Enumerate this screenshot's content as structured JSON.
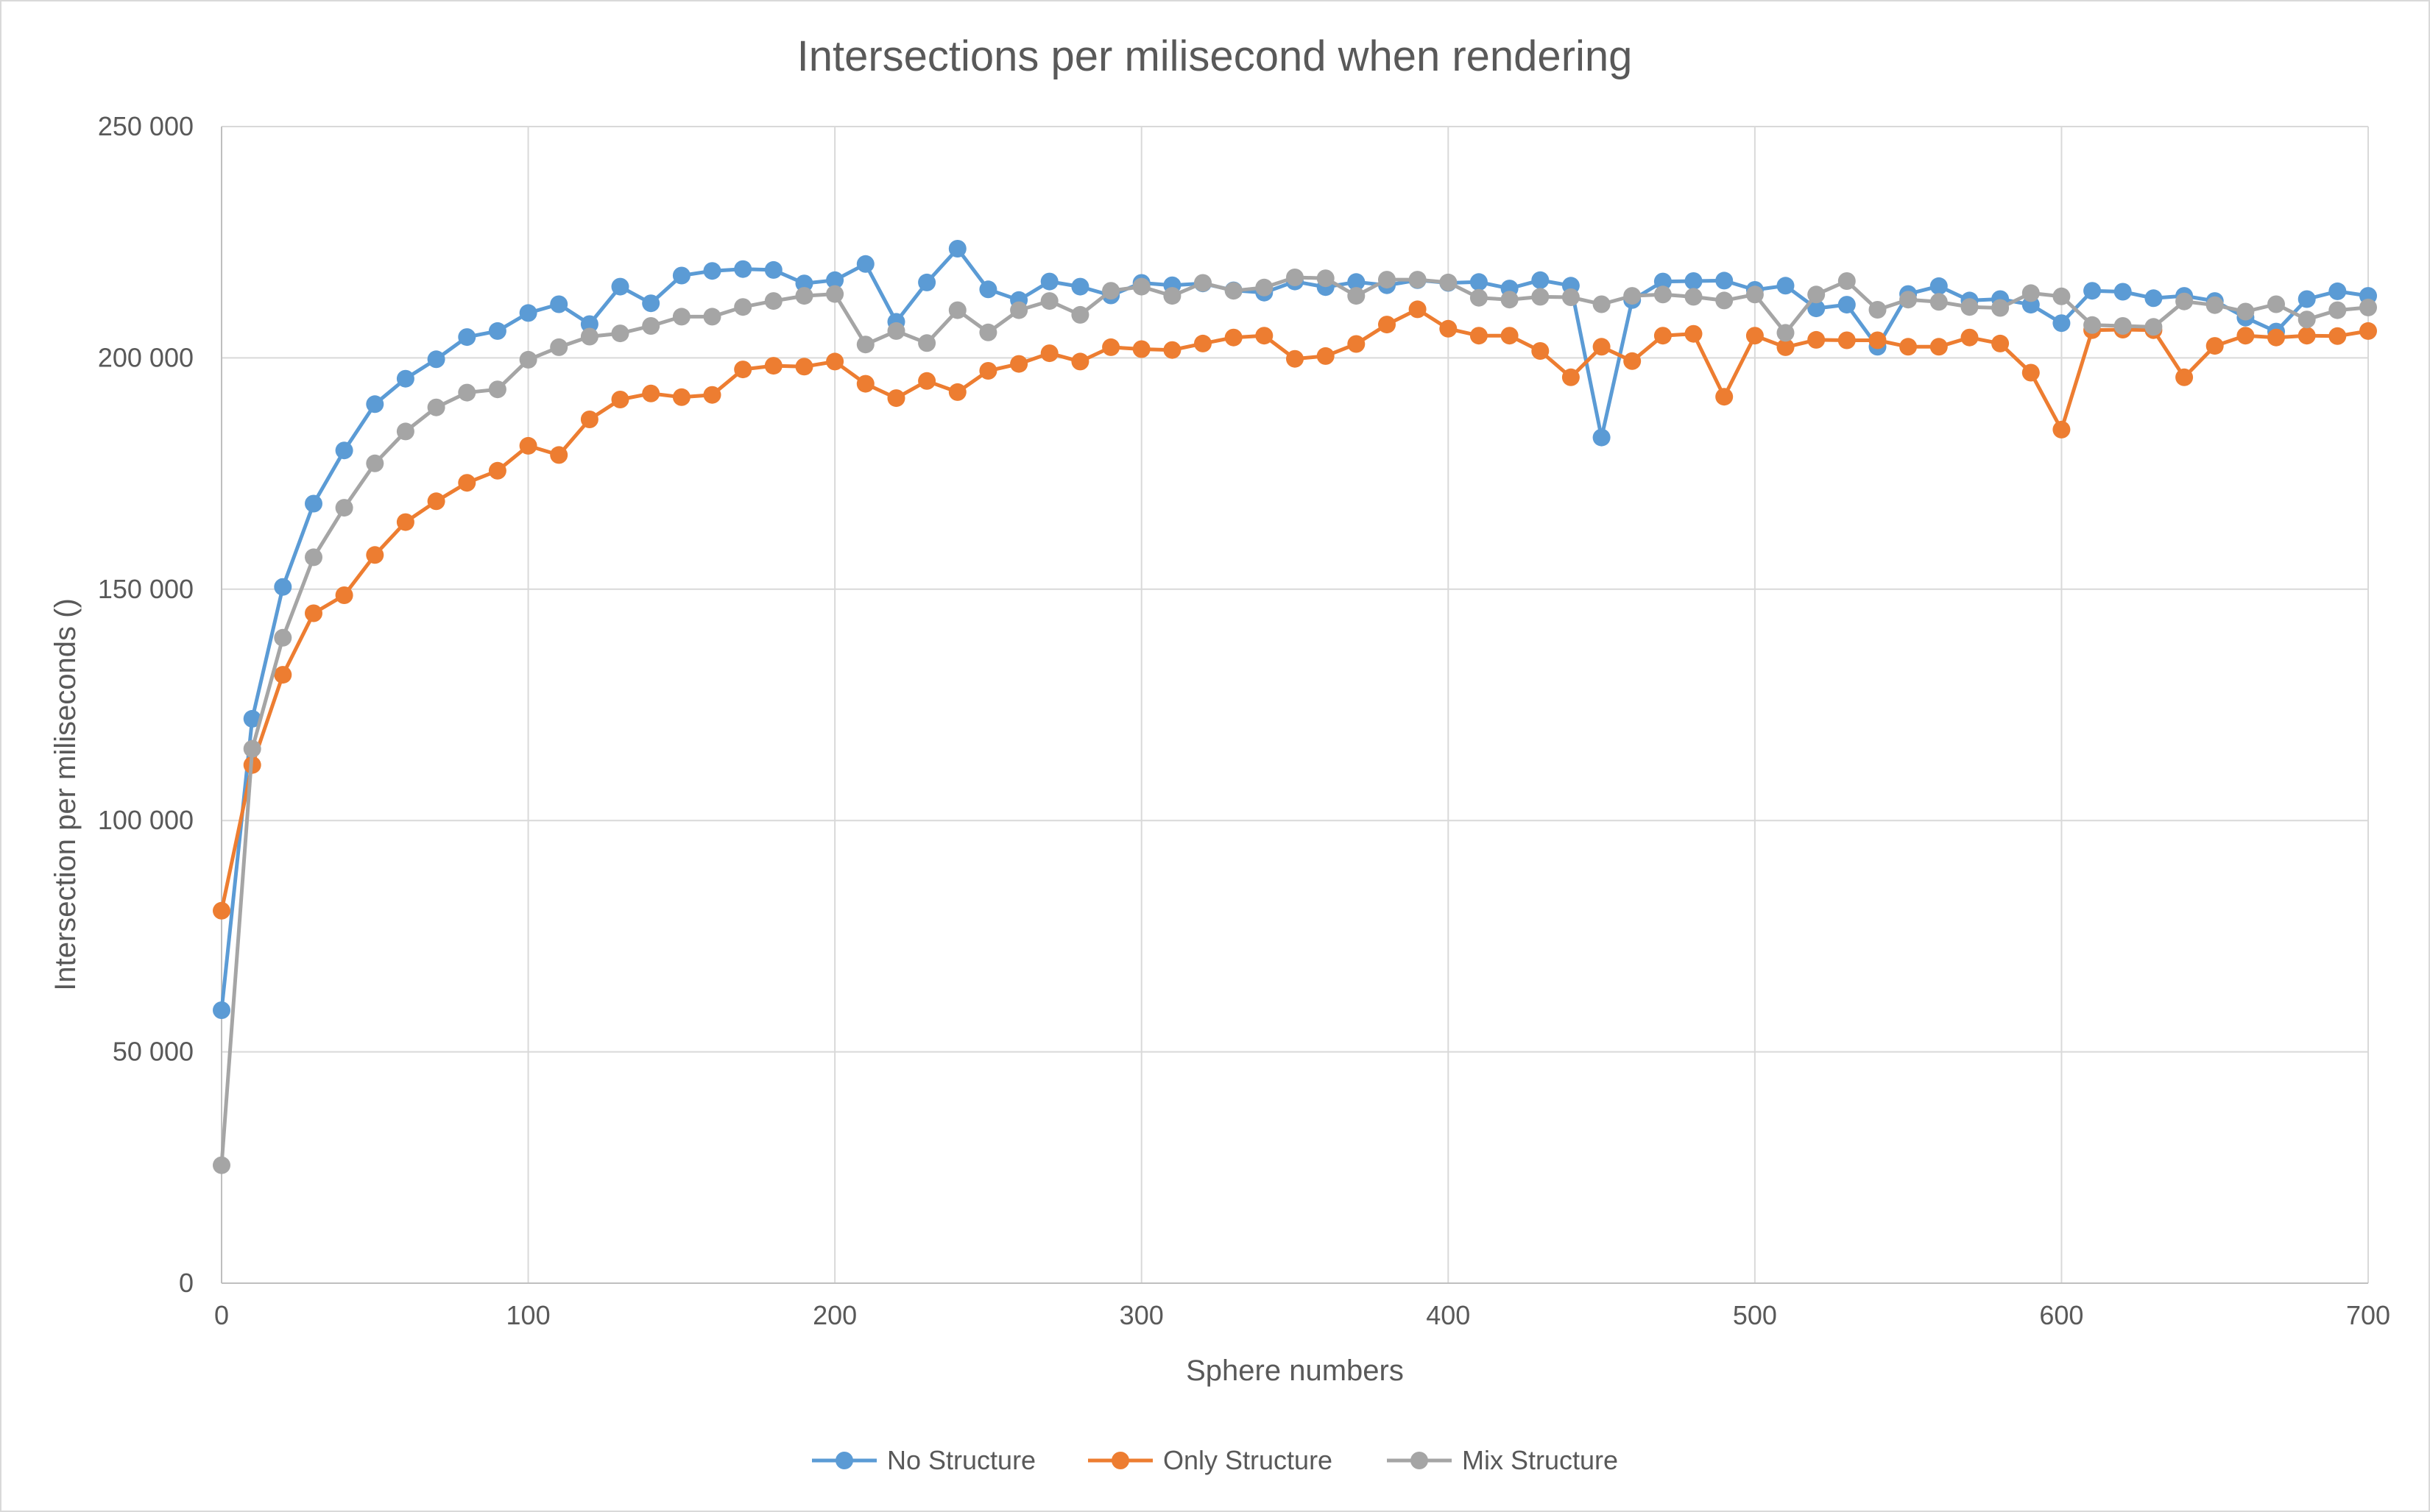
{
  "chart_data": {
    "type": "line",
    "title": "Intersections per milisecond when rendering",
    "xlabel": "Sphere numbers",
    "ylabel": "Intersection per miliseconds ()",
    "xlim": [
      0,
      700
    ],
    "ylim": [
      0,
      250000
    ],
    "x_ticks": [
      0,
      100,
      200,
      300,
      400,
      500,
      600,
      700
    ],
    "x_tick_labels": [
      "0",
      "100",
      "200",
      "300",
      "400",
      "500",
      "600",
      "700"
    ],
    "y_ticks": [
      0,
      50000,
      100000,
      150000,
      200000,
      250000
    ],
    "y_tick_labels": [
      "0",
      "50 000",
      "100 000",
      "150 000",
      "200 000",
      "250 000"
    ],
    "grid": true,
    "legend_position": "bottom",
    "x": [
      0,
      10,
      20,
      30,
      40,
      50,
      60,
      70,
      80,
      90,
      100,
      110,
      120,
      130,
      140,
      150,
      160,
      170,
      180,
      190,
      200,
      210,
      220,
      230,
      240,
      250,
      260,
      270,
      280,
      290,
      300,
      310,
      320,
      330,
      340,
      350,
      360,
      370,
      380,
      390,
      400,
      410,
      420,
      430,
      440,
      450,
      460,
      470,
      480,
      490,
      500,
      510,
      520,
      530,
      540,
      550,
      560,
      570,
      580,
      590,
      600,
      610,
      620,
      630,
      640,
      650,
      660,
      670,
      680,
      690,
      700
    ],
    "series": [
      {
        "name": "No Structure",
        "color": "#5b9bd5",
        "values": [
          59000,
          122000,
          150500,
          168500,
          180000,
          190000,
          195500,
          199700,
          204500,
          205800,
          209700,
          211600,
          207300,
          215400,
          211800,
          217800,
          218800,
          219200,
          219000,
          216100,
          216800,
          220300,
          207800,
          216300,
          223600,
          214800,
          212500,
          216500,
          215400,
          213500,
          216200,
          215700,
          216100,
          214600,
          214100,
          216500,
          215300,
          216400,
          215700,
          216800,
          216200,
          216400,
          215000,
          216800,
          215600,
          182800,
          212500,
          216500,
          216600,
          216700,
          214700,
          215600,
          210700,
          211500,
          202400,
          213800,
          215500,
          212400,
          212700,
          211500,
          207500,
          214500,
          214300,
          212900,
          213400,
          212300,
          208700,
          205700,
          212700,
          214400,
          213400
        ]
      },
      {
        "name": "Only Structure",
        "color": "#ed7d31",
        "values": [
          80500,
          112000,
          131500,
          144800,
          148700,
          157400,
          164500,
          169000,
          173000,
          175600,
          181000,
          179000,
          186700,
          191000,
          192300,
          191500,
          192000,
          197500,
          198300,
          198100,
          199200,
          194400,
          191300,
          195000,
          192600,
          197200,
          198700,
          201000,
          199200,
          202300,
          201900,
          201700,
          203100,
          204400,
          204800,
          199800,
          200400,
          203000,
          207200,
          210500,
          206300,
          204800,
          204800,
          201500,
          195800,
          202400,
          199300,
          204800,
          205200,
          191600,
          204800,
          202300,
          203900,
          203800,
          203800,
          202400,
          202400,
          204400,
          203100,
          196800,
          184500,
          206000,
          206100,
          206000,
          195800,
          202600,
          204800,
          204400,
          204800,
          204700,
          205800
        ]
      },
      {
        "name": "Mix Structure",
        "color": "#a5a5a5",
        "values": [
          25500,
          115500,
          139500,
          156900,
          167600,
          177200,
          184100,
          189300,
          192500,
          193200,
          199600,
          202300,
          204600,
          205300,
          206900,
          208900,
          208900,
          211000,
          212300,
          213400,
          213800,
          202900,
          205800,
          203200,
          210300,
          205500,
          210300,
          212300,
          209300,
          214500,
          215400,
          213400,
          216200,
          214500,
          215200,
          217400,
          217200,
          213400,
          216900,
          216900,
          216300,
          213000,
          212600,
          213200,
          213100,
          211600,
          213400,
          213700,
          213200,
          212400,
          213700,
          205400,
          213700,
          216600,
          210400,
          212600,
          212100,
          211000,
          210800,
          214000,
          213300,
          207100,
          206900,
          206700,
          212200,
          211400,
          210000,
          211600,
          208300,
          210300,
          210900
        ]
      }
    ]
  }
}
